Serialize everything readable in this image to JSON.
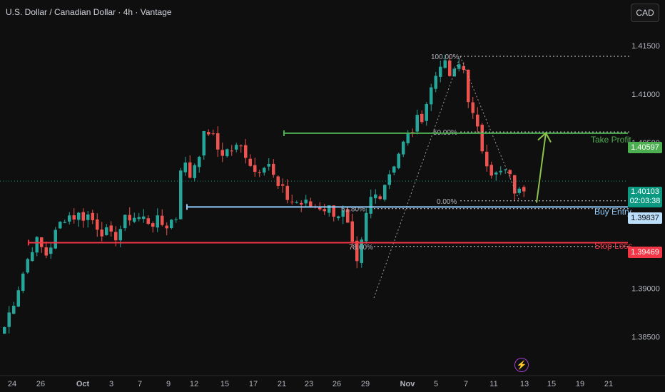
{
  "header": {
    "title": "U.S. Dollar / Canadian Dollar · 4h · Vantage",
    "currency_button": "CAD"
  },
  "colors": {
    "background": "#0f0f0f",
    "bull": "#26a69a",
    "bear": "#ef5350",
    "take_profit": "#4caf50",
    "buy_entry": "#90caf9",
    "stop_loss": "#f23645",
    "live": "#0b9981",
    "arrow": "#8bc34a"
  },
  "icons": {
    "replay": "lightning-bolt-icon"
  },
  "price_tags": {
    "take_profit": "1.40597",
    "live_price": "1.40103",
    "live_countdown": "02:03:38",
    "buy_entry": "1.39837",
    "stop_loss": "1.39469"
  },
  "labels": {
    "take_profit": "Take Profit",
    "buy_entry": "Buy Entry",
    "stop_loss": "Stop Loss"
  },
  "fib_labels": {
    "f100": "100.00%",
    "f50": "50.00%",
    "f0": "0.00%",
    "f618": "61.80%",
    "f786": "78.60%"
  },
  "chart_data": {
    "type": "candlestick",
    "title": "U.S. Dollar / Canadian Dollar · 4h · Vantage",
    "ylim": [
      1.3815,
      1.4175
    ],
    "y_ticks": [
      "1.38500",
      "1.39000",
      "1.40500",
      "1.41000",
      "1.41500"
    ],
    "x_ticks": [
      "24",
      "26",
      "Oct",
      "3",
      "7",
      "9",
      "12",
      "15",
      "17",
      "21",
      "23",
      "26",
      "29",
      "Nov",
      "5",
      "7",
      "11",
      "13",
      "15",
      "19",
      "21"
    ],
    "grid": false,
    "price_path": [
      [
        0,
        1.386
      ],
      [
        5,
        1.395
      ],
      [
        7,
        1.3935
      ],
      [
        10,
        1.3975
      ],
      [
        14,
        1.3975
      ],
      [
        18,
        1.395
      ],
      [
        21,
        1.3975
      ],
      [
        27,
        1.3965
      ],
      [
        29,
        1.3975
      ],
      [
        29.6,
        1.4035
      ],
      [
        31,
        1.4015
      ],
      [
        34,
        1.4065
      ],
      [
        36,
        1.404
      ],
      [
        40,
        1.4045
      ],
      [
        42,
        1.402
      ],
      [
        44,
        1.4035
      ],
      [
        45.5,
        1.4005
      ],
      [
        48,
        1.399
      ],
      [
        51,
        1.3985
      ],
      [
        53,
        1.3985
      ],
      [
        57,
        1.3975
      ],
      [
        59,
        1.392
      ],
      [
        60,
        1.395
      ],
      [
        61,
        1.399
      ],
      [
        63,
        1.4
      ],
      [
        66,
        1.404
      ],
      [
        70,
        1.408
      ],
      [
        72,
        1.4115
      ],
      [
        73,
        1.4135
      ],
      [
        74,
        1.4125
      ],
      [
        75,
        1.4115
      ],
      [
        76,
        1.413
      ],
      [
        77,
        1.4125
      ],
      [
        78,
        1.4085
      ],
      [
        80,
        1.4045
      ],
      [
        82,
        1.4015
      ],
      [
        84,
        1.402
      ],
      [
        86,
        1.3995
      ],
      [
        87,
        1.4005
      ]
    ],
    "levels": [
      {
        "name": "Take Profit",
        "price": 1.40597,
        "from_bar": 48
      },
      {
        "name": "Buy Entry",
        "price": 1.39837,
        "from_bar": 31
      },
      {
        "name": "Stop Loss",
        "price": 1.39469,
        "from_bar": 7
      }
    ],
    "fibonacci": {
      "swing_low": 1.389,
      "swing_high": 1.4139,
      "levels": [
        {
          "ratio": "100.00%",
          "price": 1.4139
        },
        {
          "ratio": "50.00%",
          "price": 1.4061
        },
        {
          "ratio": "0.00%",
          "price": 1.399
        },
        {
          "ratio": "61.80%",
          "price": 1.3982
        },
        {
          "ratio": "78.60%",
          "price": 1.3943
        }
      ]
    },
    "live_price": 1.40103
  }
}
